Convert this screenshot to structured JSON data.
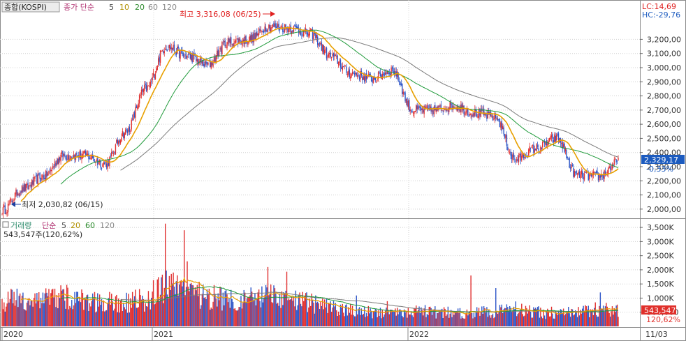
{
  "price_panel": {
    "legend": {
      "name": "종합(KOSPI)",
      "series_label": "종가 단순",
      "periods": [
        "5",
        "10",
        "20",
        "60",
        "120"
      ]
    },
    "lc": "LC:14,69",
    "hc": "HC:-29,76",
    "max_annotation": "최고 3,316,08 (06/25)",
    "min_annotation": "최저 2,030,82 (06/15)",
    "last_value": "2,329,17",
    "last_change": "-0,33%"
  },
  "volume_panel": {
    "legend": {
      "name": "거래량",
      "series_label": "단순",
      "periods": [
        "5",
        "20",
        "60",
        "120"
      ]
    },
    "current_value": "543,547주(120,62%)",
    "last_value": "543,547",
    "last_ratio": "120,62%"
  },
  "x_axis": {
    "labels": [
      "2020",
      "2021",
      "2022",
      "11/03"
    ]
  },
  "colors": {
    "up": "#e03030",
    "down": "#2f57c8",
    "ma5": "#e8a000",
    "ma20": "#1f9a3a",
    "ma60": "#7a7a7a",
    "legend_name": "#c0007a",
    "legend_series": "#b03070",
    "period5": "#444444",
    "period10": "#b09000",
    "period20": "#2a8a2a",
    "period60": "#888888",
    "period120": "#888888",
    "grid": "#d0d0d0",
    "annot": "#e02020",
    "tag_price": "#1c5bbf",
    "tag_volume": "#e0302b"
  },
  "chart_data": [
    {
      "type": "line",
      "title": "종합(KOSPI)",
      "series_kind": "candlestick with moving averages (종가 단순 5, 20, 60)",
      "x": [
        "2020-05",
        "2020-06",
        "2020-07",
        "2020-08",
        "2020-09",
        "2020-10",
        "2020-11",
        "2020-12",
        "2021-01",
        "2021-02",
        "2021-03",
        "2021-04",
        "2021-05",
        "2021-06",
        "2021-07",
        "2021-08",
        "2021-09",
        "2021-10",
        "2021-11",
        "2021-12",
        "2022-01",
        "2022-02",
        "2022-03",
        "2022-04",
        "2022-05",
        "2022-06",
        "2022-07",
        "2022-08",
        "2022-09",
        "2022-10",
        "2022-11"
      ],
      "y": [
        1990,
        2140,
        2230,
        2380,
        2380,
        2320,
        2540,
        2850,
        3150,
        3080,
        3020,
        3180,
        3200,
        3290,
        3280,
        3240,
        3080,
        2960,
        2920,
        2980,
        2700,
        2700,
        2730,
        2680,
        2650,
        2350,
        2430,
        2500,
        2240,
        2230,
        2330
      ],
      "ylim": [
        1950,
        3340
      ],
      "y_ticks": [
        "2,000,00",
        "2,100,00",
        "2,200,00",
        "2,300,00",
        "2,400,00",
        "2,500,00",
        "2,600,00",
        "2,700,00",
        "2,800,00",
        "2,900,00",
        "3,000,00",
        "3,100,00",
        "3,200,00"
      ],
      "x_tick_labels": [
        "2020",
        "2021",
        "2022",
        "11/03"
      ],
      "annotations": [
        "최고 3,316,08 (06/25)",
        "최저 2,030,82 (06/15)"
      ],
      "grid": true
    },
    {
      "type": "bar",
      "title": "거래량",
      "series_kind": "volume bars with moving averages (단순 5, 20, 60)",
      "x": [
        "2020-05",
        "2020-06",
        "2020-07",
        "2020-08",
        "2020-09",
        "2020-10",
        "2020-11",
        "2020-12",
        "2021-01",
        "2021-02",
        "2021-03",
        "2021-04",
        "2021-05",
        "2021-06",
        "2021-07",
        "2021-08",
        "2021-09",
        "2021-10",
        "2021-11",
        "2021-12",
        "2022-01",
        "2022-02",
        "2022-03",
        "2022-04",
        "2022-05",
        "2022-06",
        "2022-07",
        "2022-08",
        "2022-09",
        "2022-10",
        "2022-11"
      ],
      "values": [
        900000,
        950000,
        1000000,
        1050000,
        900000,
        850000,
        850000,
        950000,
        1450000,
        1150000,
        1050000,
        1000000,
        950000,
        1050000,
        900000,
        850000,
        650000,
        550000,
        500000,
        450000,
        550000,
        500000,
        500000,
        480000,
        520000,
        650000,
        500000,
        450000,
        500000,
        600000,
        550000
      ],
      "ylim": [
        0,
        3700000
      ],
      "y_ticks": [
        "500,000",
        "1,000K",
        "1,500K",
        "2,000K",
        "2,500K",
        "3,000K",
        "3,500K"
      ],
      "grid": true
    }
  ]
}
